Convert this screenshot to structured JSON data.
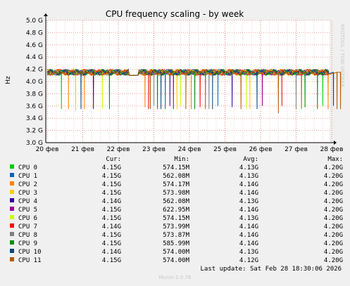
{
  "chart_data": {
    "type": "line",
    "title": "CPU frequency scaling - by week",
    "ylabel": "Hz",
    "watermark": "RRDTOOL / TOBI OETIKER",
    "ylim": [
      3.0,
      5.0
    ],
    "y_ticks": [
      "3.0 G",
      "3.2 G",
      "3.4 G",
      "3.6 G",
      "3.8 G",
      "4.0 G",
      "4.2 G",
      "4.4 G",
      "4.6 G",
      "4.8 G",
      "5.0 G"
    ],
    "x_ticks": [
      "20 фев",
      "21 фев",
      "22 фев",
      "23 фев",
      "24 фев",
      "25 фев",
      "26 фев",
      "27 фев",
      "28 фев"
    ],
    "baseline": 4.15,
    "series": [
      {
        "name": "CPU 0",
        "color": "#00cc00",
        "drops": [
          [
            0.4,
            3.55
          ],
          [
            7.75,
            3.6
          ]
        ]
      },
      {
        "name": "CPU 1",
        "color": "#0066b3",
        "drops": [
          [
            3.32,
            3.55
          ],
          [
            4.8,
            3.6
          ]
        ]
      },
      {
        "name": "CPU 2",
        "color": "#ff8000",
        "drops": [
          [
            0.6,
            3.55
          ],
          [
            1.05,
            3.55
          ],
          [
            2.75,
            3.58
          ],
          [
            4.05,
            3.55
          ],
          [
            7.9,
            3.55
          ]
        ]
      },
      {
        "name": "CPU 3",
        "color": "#ffcc00",
        "drops": [
          [
            0.8,
            3.52
          ],
          [
            3.65,
            3.55
          ],
          [
            5.7,
            3.55
          ]
        ]
      },
      {
        "name": "CPU 4",
        "color": "#330099",
        "drops": [
          [
            1.3,
            3.55
          ],
          [
            3.45,
            3.6
          ],
          [
            5.2,
            3.58
          ]
        ]
      },
      {
        "name": "CPU 5",
        "color": "#990099",
        "drops": [
          [
            3.55,
            3.55
          ],
          [
            6.05,
            3.6
          ]
        ]
      },
      {
        "name": "CPU 6",
        "color": "#ccff00",
        "drops": [
          [
            1.55,
            3.55
          ],
          [
            3.75,
            3.6
          ],
          [
            5.6,
            3.55
          ]
        ]
      },
      {
        "name": "CPU 7",
        "color": "#ff0000",
        "drops": [
          [
            2.85,
            3.55
          ],
          [
            4.3,
            3.58
          ],
          [
            6.6,
            3.6
          ]
        ]
      },
      {
        "name": "CPU 8",
        "color": "#808080",
        "drops": [
          [
            3.0,
            3.6
          ],
          [
            4.55,
            3.55
          ],
          [
            7.0,
            3.55
          ]
        ]
      },
      {
        "name": "CPU 9",
        "color": "#008f00",
        "drops": [
          [
            1.75,
            3.55
          ],
          [
            3.1,
            3.55
          ],
          [
            4.15,
            3.55
          ],
          [
            7.25,
            3.58
          ],
          [
            7.6,
            3.55
          ]
        ]
      },
      {
        "name": "CPU 10",
        "color": "#00487d",
        "drops": [
          [
            0.95,
            3.55
          ],
          [
            3.2,
            3.55
          ],
          [
            4.65,
            3.55
          ],
          [
            5.9,
            3.55
          ],
          [
            8.05,
            3.6
          ]
        ]
      },
      {
        "name": "CPU 11",
        "color": "#b35a00",
        "drops": [
          [
            2.9,
            3.55
          ],
          [
            3.9,
            3.55
          ],
          [
            4.45,
            3.55
          ],
          [
            5.45,
            3.55
          ],
          [
            6.5,
            3.48
          ],
          [
            7.15,
            3.55
          ],
          [
            8.15,
            3.55
          ],
          [
            8.25,
            3.55
          ]
        ]
      }
    ]
  },
  "legend": {
    "headers": {
      "cur": "Cur:",
      "min": "Min:",
      "avg": "Avg:",
      "max": "Max:"
    },
    "rows": [
      {
        "name": "CPU 0",
        "color": "#00cc00",
        "cur": "4.15G",
        "min": "574.15M",
        "avg": "4.13G",
        "max": "4.20G"
      },
      {
        "name": "CPU 1",
        "color": "#0066b3",
        "cur": "4.15G",
        "min": "562.08M",
        "avg": "4.13G",
        "max": "4.20G"
      },
      {
        "name": "CPU 2",
        "color": "#ff8000",
        "cur": "4.15G",
        "min": "574.17M",
        "avg": "4.14G",
        "max": "4.20G"
      },
      {
        "name": "CPU 3",
        "color": "#ffcc00",
        "cur": "4.15G",
        "min": "573.98M",
        "avg": "4.14G",
        "max": "4.20G"
      },
      {
        "name": "CPU 4",
        "color": "#330099",
        "cur": "4.14G",
        "min": "562.08M",
        "avg": "4.13G",
        "max": "4.20G"
      },
      {
        "name": "CPU 5",
        "color": "#990099",
        "cur": "4.15G",
        "min": "622.95M",
        "avg": "4.14G",
        "max": "4.20G"
      },
      {
        "name": "CPU 6",
        "color": "#ccff00",
        "cur": "4.15G",
        "min": "574.15M",
        "avg": "4.13G",
        "max": "4.20G"
      },
      {
        "name": "CPU 7",
        "color": "#ff0000",
        "cur": "4.14G",
        "min": "573.99M",
        "avg": "4.14G",
        "max": "4.20G"
      },
      {
        "name": "CPU 8",
        "color": "#808080",
        "cur": "4.15G",
        "min": "573.87M",
        "avg": "4.14G",
        "max": "4.20G"
      },
      {
        "name": "CPU 9",
        "color": "#008f00",
        "cur": "4.15G",
        "min": "585.99M",
        "avg": "4.14G",
        "max": "4.20G"
      },
      {
        "name": "CPU 10",
        "color": "#00487d",
        "cur": "4.14G",
        "min": "574.00M",
        "avg": "4.13G",
        "max": "4.20G"
      },
      {
        "name": "CPU 11",
        "color": "#b35a00",
        "cur": "4.15G",
        "min": "574.00M",
        "avg": "4.12G",
        "max": "4.20G"
      }
    ]
  },
  "footer": {
    "last_update": "Last update: Sat Feb 28 18:30:06 2026",
    "version": "Munin 2.0.76"
  }
}
